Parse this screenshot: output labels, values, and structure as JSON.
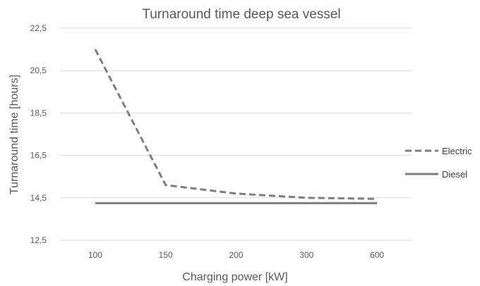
{
  "chart_data": {
    "type": "line",
    "title": "Turnaround time deep sea vessel",
    "xlabel": "Charging power [kW]",
    "ylabel": "Turnaround time [hours]",
    "categories": [
      "100",
      "150",
      "200",
      "300",
      "600"
    ],
    "ylim": [
      12.5,
      22.5
    ],
    "yticks": [
      "12,5",
      "14,5",
      "16,5",
      "18,5",
      "20,5",
      "22,5"
    ],
    "ytick_values": [
      12.5,
      14.5,
      16.5,
      18.5,
      20.5,
      22.5
    ],
    "grid": true,
    "legend_position": "right",
    "series": [
      {
        "name": "Electric",
        "values": [
          21.5,
          15.1,
          14.7,
          14.5,
          14.45
        ],
        "color": "#7f7f7f",
        "style": "dashed"
      },
      {
        "name": "Diesel",
        "values": [
          14.25,
          14.25,
          14.25,
          14.25,
          14.25
        ],
        "color": "#7f7f7f",
        "style": "solid"
      }
    ]
  }
}
